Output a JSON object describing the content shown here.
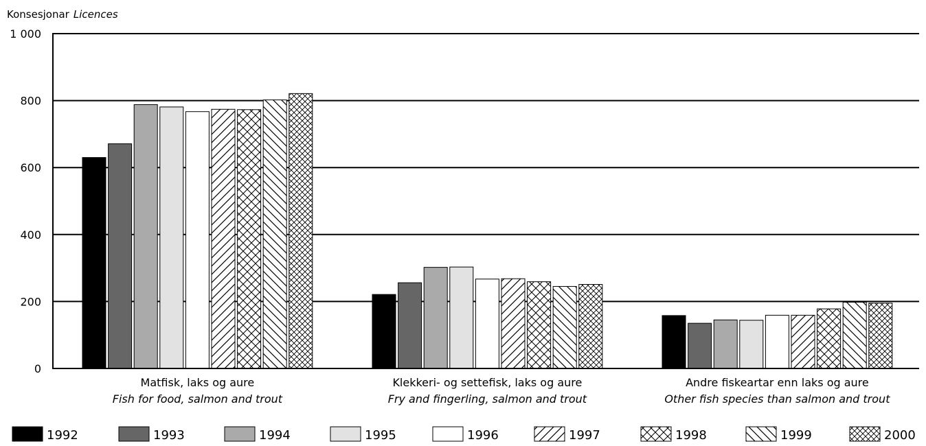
{
  "chart_data": {
    "type": "bar",
    "ylabel": "Konsesjonar",
    "ylabel_en": "Licences",
    "ylim": [
      0,
      1000
    ],
    "yticks": [
      0,
      200,
      400,
      600,
      800,
      1000
    ],
    "ytick_labels": [
      "0",
      "200",
      "400",
      "600",
      "800",
      "1 000"
    ],
    "grid": true,
    "legend_position": "bottom",
    "categories": [
      {
        "label": "Matfisk, laks og aure",
        "label_en": "Fish for food, salmon and trout"
      },
      {
        "label": "Klekkeri- og settefisk, laks og aure",
        "label_en": "Fry and fingerling, salmon and trout"
      },
      {
        "label": "Andre fiskeartar enn laks og aure",
        "label_en": "Other fish species than salmon and trout"
      }
    ],
    "series": [
      {
        "name": "1992",
        "fill": "solid-black",
        "values": [
          630,
          221,
          158
        ]
      },
      {
        "name": "1993",
        "fill": "solid-darkgray",
        "values": [
          671,
          256,
          135
        ]
      },
      {
        "name": "1994",
        "fill": "solid-gray",
        "values": [
          788,
          302,
          145
        ]
      },
      {
        "name": "1995",
        "fill": "solid-lightgray",
        "values": [
          781,
          303,
          144
        ]
      },
      {
        "name": "1996",
        "fill": "solid-white",
        "values": [
          767,
          267,
          159
        ]
      },
      {
        "name": "1997",
        "fill": "diag-hatch",
        "values": [
          774,
          268,
          159
        ]
      },
      {
        "name": "1998",
        "fill": "cross-hatch-sparse",
        "values": [
          773,
          259,
          178
        ]
      },
      {
        "name": "1999",
        "fill": "back-diag-hatch",
        "values": [
          802,
          245,
          198
        ]
      },
      {
        "name": "2000",
        "fill": "cross-hatch-dense",
        "values": [
          821,
          251,
          195
        ]
      }
    ]
  }
}
